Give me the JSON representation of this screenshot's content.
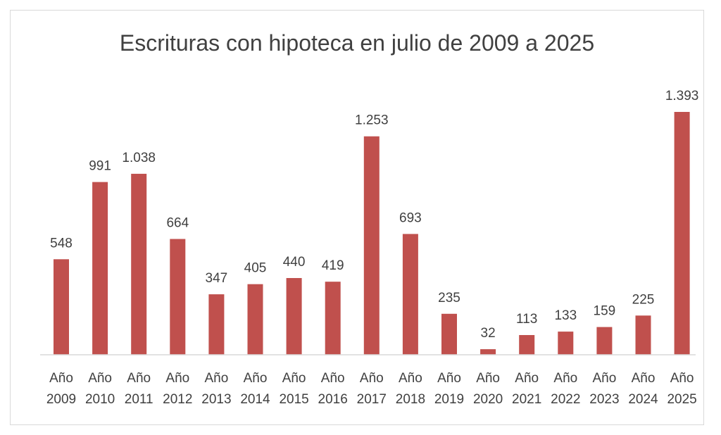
{
  "chart_data": {
    "type": "bar",
    "title": "Escrituras con hipoteca en julio de 2009 a 2025",
    "categories": [
      [
        "Año",
        "2009"
      ],
      [
        "Año",
        "2010"
      ],
      [
        "Año",
        "2011"
      ],
      [
        "Año",
        "2012"
      ],
      [
        "Año",
        "2013"
      ],
      [
        "Año",
        "2014"
      ],
      [
        "Año",
        "2015"
      ],
      [
        "Año",
        "2016"
      ],
      [
        "Año",
        "2017"
      ],
      [
        "Año",
        "2018"
      ],
      [
        "Año",
        "2019"
      ],
      [
        "Año",
        "2020"
      ],
      [
        "Año",
        "2021"
      ],
      [
        "Año",
        "2022"
      ],
      [
        "Año",
        "2023"
      ],
      [
        "Año",
        "2024"
      ],
      [
        "Año",
        "2025"
      ]
    ],
    "values": [
      548,
      991,
      1038,
      664,
      347,
      405,
      440,
      419,
      1253,
      693,
      235,
      32,
      113,
      133,
      159,
      225,
      1393
    ],
    "data_labels": [
      "548",
      "991",
      "1.038",
      "664",
      "347",
      "405",
      "440",
      "419",
      "1.253",
      "693",
      "235",
      "32",
      "113",
      "133",
      "159",
      "225",
      "1.393"
    ],
    "ylim": [
      0,
      1393
    ],
    "grid": false,
    "legend": "none",
    "bar_color": "#c0504d",
    "axis_color": "#d9d9d9"
  }
}
